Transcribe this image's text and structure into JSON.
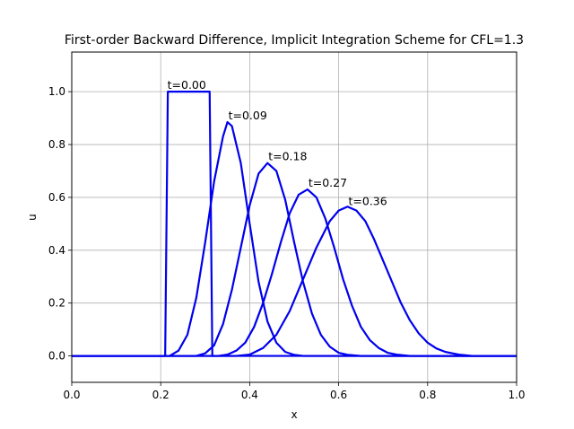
{
  "chart_data": {
    "type": "line",
    "title": "First-order Backward Difference, Implicit Integration Scheme for  CFL=1.3",
    "xlabel": "x",
    "ylabel": "u",
    "xlim": [
      0,
      1
    ],
    "ylim": [
      -0.1,
      1.15
    ],
    "grid": true,
    "line_color": "#0000ee",
    "xticks": [
      0.0,
      0.2,
      0.4,
      0.6,
      0.8,
      1.0
    ],
    "xtick_labels": [
      "0.0",
      "0.2",
      "0.4",
      "0.6",
      "0.8",
      "1.0"
    ],
    "yticks": [
      0.0,
      0.2,
      0.4,
      0.6,
      0.8,
      1.0
    ],
    "ytick_labels": [
      "0.0",
      "0.2",
      "0.4",
      "0.6",
      "0.8",
      "1.0"
    ],
    "series": [
      {
        "label": "t=0.00",
        "label_at": [
          0.215,
          1.0
        ],
        "points": [
          [
            0,
            0
          ],
          [
            0.21,
            0
          ],
          [
            0.213,
            0.5
          ],
          [
            0.216,
            1.0
          ],
          [
            0.31,
            1.0
          ],
          [
            0.313,
            0.5
          ],
          [
            0.316,
            0
          ],
          [
            1,
            0
          ]
        ]
      },
      {
        "label": "t=0.09",
        "peak_x": 0.35,
        "peak_u": 0.885,
        "label_at": [
          0.352,
          0.885
        ],
        "points": [
          [
            0,
            0
          ],
          [
            0.22,
            0
          ],
          [
            0.24,
            0.02
          ],
          [
            0.26,
            0.08
          ],
          [
            0.28,
            0.22
          ],
          [
            0.3,
            0.43
          ],
          [
            0.32,
            0.66
          ],
          [
            0.34,
            0.83
          ],
          [
            0.35,
            0.885
          ],
          [
            0.36,
            0.87
          ],
          [
            0.38,
            0.73
          ],
          [
            0.4,
            0.5
          ],
          [
            0.42,
            0.28
          ],
          [
            0.44,
            0.13
          ],
          [
            0.46,
            0.05
          ],
          [
            0.48,
            0.015
          ],
          [
            0.5,
            0.004
          ],
          [
            0.52,
            0
          ],
          [
            1,
            0
          ]
        ]
      },
      {
        "label": "t=0.18",
        "peak_x": 0.44,
        "peak_u": 0.73,
        "label_at": [
          0.442,
          0.73
        ],
        "points": [
          [
            0,
            0
          ],
          [
            0.28,
            0
          ],
          [
            0.3,
            0.01
          ],
          [
            0.32,
            0.04
          ],
          [
            0.34,
            0.12
          ],
          [
            0.36,
            0.25
          ],
          [
            0.38,
            0.41
          ],
          [
            0.4,
            0.57
          ],
          [
            0.42,
            0.69
          ],
          [
            0.44,
            0.73
          ],
          [
            0.46,
            0.7
          ],
          [
            0.48,
            0.59
          ],
          [
            0.5,
            0.43
          ],
          [
            0.52,
            0.28
          ],
          [
            0.54,
            0.16
          ],
          [
            0.56,
            0.08
          ],
          [
            0.58,
            0.035
          ],
          [
            0.6,
            0.012
          ],
          [
            0.62,
            0.004
          ],
          [
            0.65,
            0
          ],
          [
            1,
            0
          ]
        ]
      },
      {
        "label": "t=0.27",
        "peak_x": 0.53,
        "peak_u": 0.63,
        "label_at": [
          0.532,
          0.63
        ],
        "points": [
          [
            0,
            0
          ],
          [
            0.33,
            0
          ],
          [
            0.35,
            0.005
          ],
          [
            0.37,
            0.02
          ],
          [
            0.39,
            0.05
          ],
          [
            0.41,
            0.11
          ],
          [
            0.43,
            0.2
          ],
          [
            0.45,
            0.31
          ],
          [
            0.47,
            0.43
          ],
          [
            0.49,
            0.54
          ],
          [
            0.51,
            0.61
          ],
          [
            0.53,
            0.63
          ],
          [
            0.55,
            0.6
          ],
          [
            0.57,
            0.52
          ],
          [
            0.59,
            0.41
          ],
          [
            0.61,
            0.29
          ],
          [
            0.63,
            0.19
          ],
          [
            0.65,
            0.11
          ],
          [
            0.67,
            0.06
          ],
          [
            0.69,
            0.03
          ],
          [
            0.71,
            0.012
          ],
          [
            0.73,
            0.005
          ],
          [
            0.76,
            0
          ],
          [
            1,
            0
          ]
        ]
      },
      {
        "label": "t=0.36",
        "peak_x": 0.62,
        "peak_u": 0.56,
        "label_at": [
          0.622,
          0.56
        ],
        "points": [
          [
            0,
            0
          ],
          [
            0.37,
            0
          ],
          [
            0.4,
            0.005
          ],
          [
            0.43,
            0.03
          ],
          [
            0.46,
            0.08
          ],
          [
            0.49,
            0.17
          ],
          [
            0.52,
            0.29
          ],
          [
            0.55,
            0.41
          ],
          [
            0.58,
            0.51
          ],
          [
            0.6,
            0.55
          ],
          [
            0.62,
            0.565
          ],
          [
            0.64,
            0.55
          ],
          [
            0.66,
            0.51
          ],
          [
            0.68,
            0.44
          ],
          [
            0.7,
            0.36
          ],
          [
            0.72,
            0.28
          ],
          [
            0.74,
            0.2
          ],
          [
            0.76,
            0.135
          ],
          [
            0.78,
            0.085
          ],
          [
            0.8,
            0.05
          ],
          [
            0.82,
            0.028
          ],
          [
            0.84,
            0.015
          ],
          [
            0.87,
            0.005
          ],
          [
            0.9,
            0
          ],
          [
            1,
            0
          ]
        ]
      }
    ]
  }
}
